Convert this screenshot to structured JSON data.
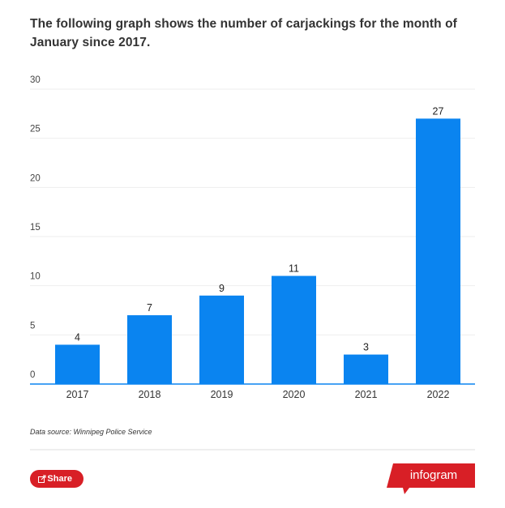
{
  "chart_data": {
    "type": "bar",
    "title": "The following graph shows the number of carjackings for the month of January since 2017.",
    "categories": [
      "2017",
      "2018",
      "2019",
      "2020",
      "2021",
      "2022"
    ],
    "values": [
      4,
      7,
      9,
      11,
      3,
      27
    ],
    "color": "#0a84f0",
    "ylim": [
      0,
      30
    ],
    "yticks": [
      0,
      5,
      10,
      15,
      20,
      25,
      30
    ],
    "grid": true,
    "source": "Data source: Winnipeg Police Service"
  },
  "footer": {
    "share": "Share",
    "brand": "infogram"
  }
}
